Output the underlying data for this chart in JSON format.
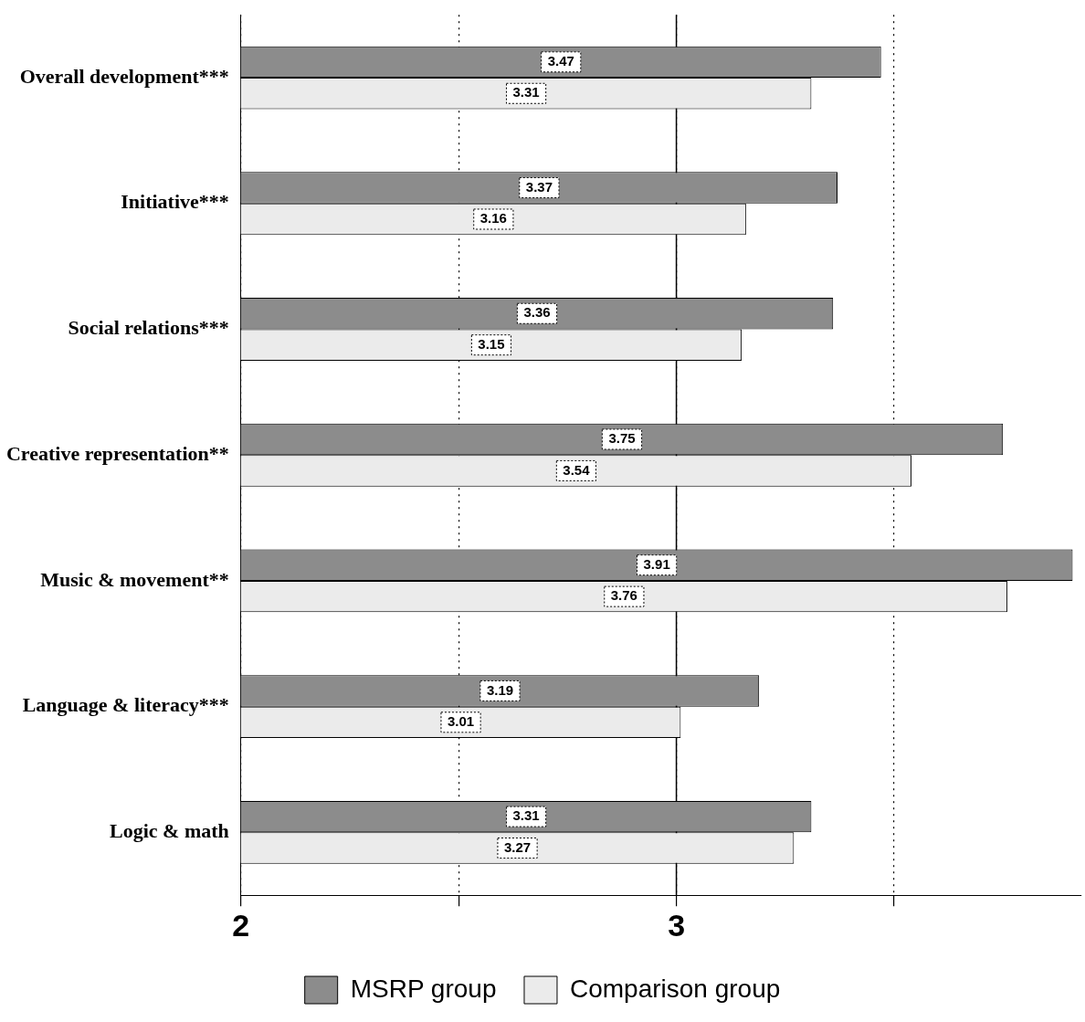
{
  "chart_data": {
    "type": "bar",
    "orientation": "horizontal",
    "categories": [
      "Overall development***",
      "Initiative***",
      "Social relations***",
      "Creative representation**",
      "Music & movement**",
      "Language & literacy***",
      "Logic & math"
    ],
    "series": [
      {
        "name": "MSRP group",
        "color": "#8c8c8c",
        "values": [
          3.47,
          3.37,
          3.36,
          3.75,
          3.91,
          3.19,
          3.31
        ]
      },
      {
        "name": "Comparison group",
        "color": "#ebebeb",
        "values": [
          3.31,
          3.16,
          3.15,
          3.54,
          3.76,
          3.01,
          3.27
        ]
      }
    ],
    "xlim": [
      2,
      3.93
    ],
    "xticks": [
      2,
      {
        "value": 2.5,
        "label": null
      },
      3,
      {
        "value": 3.5,
        "label": null
      }
    ],
    "ref_lines": [
      {
        "axis": "x",
        "value": 3,
        "color": "#000000",
        "line_style": "solid"
      }
    ],
    "grid": "x",
    "legend": "bottom",
    "data_labels": true
  }
}
